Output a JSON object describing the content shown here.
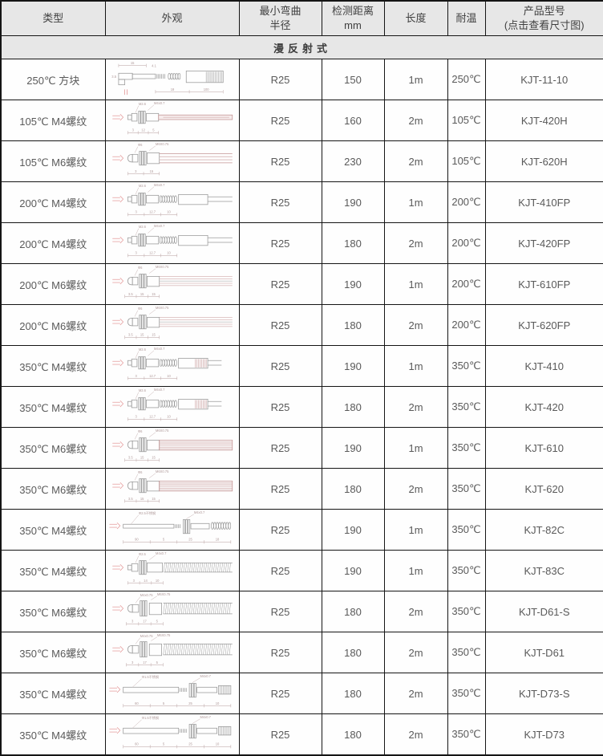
{
  "colors": {
    "header_bg": "#e7e7e7",
    "border": "#151515",
    "text": "#5a5a5a",
    "drawing_line": "#9a9a9a",
    "cable": "#c49494",
    "arrow": "#e29090",
    "dim": "#c4b0b0"
  },
  "table": {
    "headers": [
      "类型",
      "外观",
      "最小弯曲\n半径",
      "检测距离\nmm",
      "长度",
      "耐温",
      "产品型号\n(点击查看尺寸图)"
    ],
    "section_title": "漫反射式"
  },
  "rows": [
    {
      "type": "250℃ 方块",
      "radius": "R25",
      "distance": "150",
      "length": "1m",
      "temp": "250℃",
      "model": "KJT-11-10",
      "drawing": {
        "kind": "block",
        "labels": [],
        "dims": [],
        "top": [
          "15",
          "4.1"
        ],
        "left": "3.5",
        "bottom": [
          "18",
          "100"
        ]
      }
    },
    {
      "type": "105℃ M4螺纹",
      "radius": "R25",
      "distance": "160",
      "length": "2m",
      "temp": "105℃",
      "model": "KJT-420H",
      "drawing": {
        "kind": "m4-cable",
        "labels": [
          "M2.6",
          "M4x0.7"
        ],
        "dims": [
          "3",
          "12",
          "5"
        ]
      }
    },
    {
      "type": "105℃ M6螺纹",
      "radius": "R25",
      "distance": "230",
      "length": "2m",
      "temp": "105℃",
      "model": "KJT-620H",
      "drawing": {
        "kind": "m6-cable",
        "labels": [
          "Φ6",
          "M6X0.75"
        ],
        "dims": [
          "3",
          "15"
        ]
      }
    },
    {
      "type": "200℃ M4螺纹",
      "radius": "R25",
      "distance": "190",
      "length": "1m",
      "temp": "200℃",
      "model": "KJT-410FP",
      "drawing": {
        "kind": "m4-spring-conn",
        "labels": [
          "M2.6",
          "M4x0.7"
        ],
        "dims": [
          "3",
          "12.7",
          "10"
        ]
      }
    },
    {
      "type": "200℃ M4螺纹",
      "radius": "R25",
      "distance": "180",
      "length": "2m",
      "temp": "200℃",
      "model": "KJT-420FP",
      "drawing": {
        "kind": "m4-spring-conn",
        "labels": [
          "M2.6",
          "M4x0.7"
        ],
        "dims": [
          "3",
          "12.7",
          "10"
        ]
      }
    },
    {
      "type": "200℃ M6螺纹",
      "radius": "R25",
      "distance": "190",
      "length": "1m",
      "temp": "200℃",
      "model": "KJT-610FP",
      "drawing": {
        "kind": "m6-stripe",
        "labels": [
          "Φ6",
          "M6X0.75"
        ],
        "dims": [
          "3.5",
          "15",
          "15"
        ]
      }
    },
    {
      "type": "200℃ M6螺纹",
      "radius": "R25",
      "distance": "180",
      "length": "2m",
      "temp": "200℃",
      "model": "KJT-620FP",
      "drawing": {
        "kind": "m6-stripe",
        "labels": [
          "Φ6",
          "M6X0.75"
        ],
        "dims": [
          "3.5",
          "15",
          "15"
        ]
      }
    },
    {
      "type": "350℃ M4螺纹",
      "radius": "R25",
      "distance": "190",
      "length": "1m",
      "temp": "350℃",
      "model": "KJT-410",
      "drawing": {
        "kind": "m4-spring-hatch",
        "labels": [
          "M2.6",
          "M4x0.7"
        ],
        "dims": [
          "3",
          "12.7",
          "10"
        ]
      }
    },
    {
      "type": "350℃ M4螺纹",
      "radius": "R25",
      "distance": "180",
      "length": "2m",
      "temp": "350℃",
      "model": "KJT-420",
      "drawing": {
        "kind": "m4-spring-hatch",
        "labels": [
          "M2.6",
          "M4x0.7"
        ],
        "dims": [
          "3",
          "12.7",
          "10"
        ]
      }
    },
    {
      "type": "350℃ M6螺纹",
      "radius": "R25",
      "distance": "190",
      "length": "1m",
      "temp": "350℃",
      "model": "KJT-610",
      "drawing": {
        "kind": "m6-hatch",
        "labels": [
          "Φ6",
          "M6X0.75"
        ],
        "dims": [
          "3.5",
          "15",
          "15"
        ]
      }
    },
    {
      "type": "350℃ M6螺纹",
      "radius": "R25",
      "distance": "180",
      "length": "2m",
      "temp": "350℃",
      "model": "KJT-620",
      "drawing": {
        "kind": "m6-hatch",
        "labels": [
          "Φ6",
          "M6X0.75"
        ],
        "dims": [
          "3.5",
          "15",
          "15"
        ]
      }
    },
    {
      "type": "350℃ M4螺纹",
      "radius": "R25",
      "distance": "190",
      "length": "1m",
      "temp": "350℃",
      "model": "KJT-82C",
      "drawing": {
        "kind": "tube-coil",
        "labels": [
          "Φ2.5不锈钢",
          "M4x0.7"
        ],
        "dims": [
          "90",
          "5",
          "25",
          "18"
        ]
      }
    },
    {
      "type": "350℃ M4螺纹",
      "radius": "R25",
      "distance": "190",
      "length": "1m",
      "temp": "350℃",
      "model": "KJT-83C",
      "drawing": {
        "kind": "m4-corrugated",
        "labels": [
          "Φ2.5",
          "M4x0.7"
        ],
        "dims": [
          "3",
          "14",
          "10"
        ]
      }
    },
    {
      "type": "350℃ M6螺纹",
      "radius": "R25",
      "distance": "180",
      "length": "2m",
      "temp": "350℃",
      "model": "KJT-D61-S",
      "drawing": {
        "kind": "m6-corrugated",
        "labels": [
          "M4x0.75",
          "M6X0.75"
        ],
        "dims": [
          "3",
          "17",
          "5"
        ]
      }
    },
    {
      "type": "350℃ M6螺纹",
      "radius": "R25",
      "distance": "180",
      "length": "2m",
      "temp": "350℃",
      "model": "KJT-D61",
      "drawing": {
        "kind": "m6-corrugated",
        "labels": [
          "M4x0.75",
          "M6X0.75"
        ],
        "dims": [
          "3",
          "17",
          "5"
        ]
      }
    },
    {
      "type": "350℃ M4螺纹",
      "radius": "R25",
      "distance": "180",
      "length": "2m",
      "temp": "350℃",
      "model": "KJT-D73-S",
      "drawing": {
        "kind": "tube-block",
        "labels": [
          "Φ1.5不锈钢",
          "M4x0.7"
        ],
        "dims": [
          "60",
          "5",
          "25",
          "10"
        ]
      }
    },
    {
      "type": "350℃ M4螺纹",
      "radius": "R25",
      "distance": "180",
      "length": "2m",
      "temp": "350℃",
      "model": "KJT-D73",
      "drawing": {
        "kind": "tube-block",
        "labels": [
          "Φ1.5不锈钢",
          "M4x0.7"
        ],
        "dims": [
          "60",
          "5",
          "25",
          "10"
        ]
      }
    }
  ]
}
